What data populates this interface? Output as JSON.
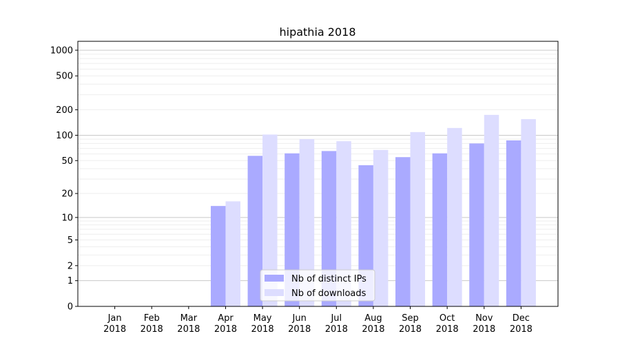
{
  "chart_data": {
    "type": "bar",
    "title": "hipathia 2018",
    "xlabel": "",
    "ylabel": "",
    "yscale": "log10(1+y)",
    "ylim": [
      0,
      1200
    ],
    "categories": [
      "Jan\n2018",
      "Feb\n2018",
      "Mar\n2018",
      "Apr\n2018",
      "May\n2018",
      "Jun\n2018",
      "Jul\n2018",
      "Aug\n2018",
      "Sep\n2018",
      "Oct\n2018",
      "Nov\n2018",
      "Dec\n2018"
    ],
    "yticks": [
      0,
      1,
      2,
      5,
      10,
      20,
      50,
      100,
      200,
      500,
      1000
    ],
    "series": [
      {
        "name": "Nb of distinct IPs",
        "color": "#aaaaff",
        "values": [
          0,
          0,
          0,
          14,
          57,
          61,
          65,
          44,
          55,
          61,
          80,
          87
        ]
      },
      {
        "name": "Nb of downloads",
        "color": "#ddddff",
        "values": [
          0,
          0,
          0,
          16,
          102,
          90,
          85,
          67,
          109,
          122,
          174,
          155
        ]
      }
    ],
    "legend": "lower-center",
    "grid": true
  }
}
